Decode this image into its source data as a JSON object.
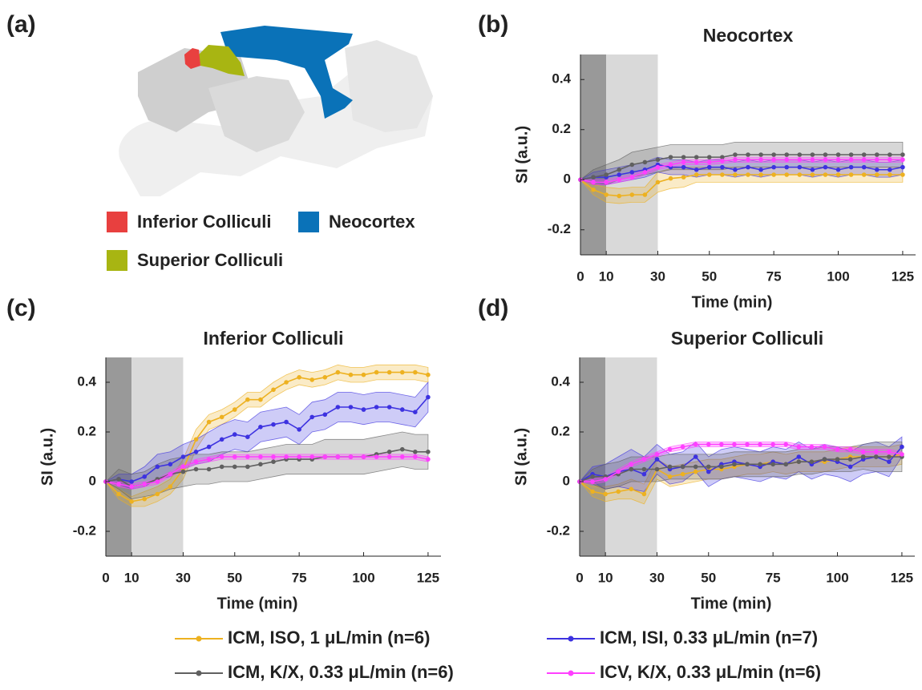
{
  "brain_diagram": {
    "panel_label": "(a)",
    "legend": [
      {
        "name": "Inferior Colliculi",
        "color": "#e8403f"
      },
      {
        "name": "Neocortex",
        "color": "#0a72b8"
      },
      {
        "name": "Superior Colliculi",
        "color": "#a8b512"
      }
    ]
  },
  "chart_data": [
    {
      "type": "line",
      "panel_label": "(b)",
      "title": "Neocortex",
      "xlabel": "Time (min)",
      "ylabel": "SI (a.u.)",
      "x": [
        0,
        5,
        10,
        15,
        20,
        25,
        30,
        35,
        40,
        45,
        50,
        55,
        60,
        65,
        70,
        75,
        80,
        85,
        90,
        95,
        100,
        105,
        110,
        115,
        120,
        125
      ],
      "xlim": [
        0,
        130
      ],
      "xticks": [
        0,
        10,
        30,
        50,
        75,
        100,
        125
      ],
      "ylim": [
        -0.3,
        0.5
      ],
      "yticks": [
        -0.2,
        0,
        0.2,
        0.4
      ],
      "shaded_spans": [
        {
          "xlim": [
            0,
            10
          ],
          "color": "#999999"
        },
        {
          "xlim": [
            10,
            30
          ],
          "color": "#d9d9d9"
        }
      ],
      "series": [
        {
          "name": "ICM, ISO, 1 μL/min (n=6)",
          "color": "#edb120",
          "values": [
            0,
            -0.04,
            -0.06,
            -0.065,
            -0.06,
            -0.06,
            -0.01,
            0.005,
            0.01,
            0.02,
            0.02,
            0.02,
            0.02,
            0.02,
            0.02,
            0.02,
            0.02,
            0.02,
            0.02,
            0.02,
            0.02,
            0.02,
            0.02,
            0.02,
            0.02,
            0.02
          ],
          "error": [
            0,
            0.02,
            0.03,
            0.03,
            0.03,
            0.03,
            0.04,
            0.04,
            0.04,
            0.03,
            0.03,
            0.03,
            0.03,
            0.03,
            0.03,
            0.03,
            0.03,
            0.03,
            0.03,
            0.03,
            0.03,
            0.03,
            0.03,
            0.03,
            0.03,
            0.03
          ]
        },
        {
          "name": "ICM, ISI, 0.33 μL/min (n=7)",
          "color": "#3d32e0",
          "values": [
            0,
            0.01,
            0.01,
            0.02,
            0.03,
            0.04,
            0.06,
            0.05,
            0.05,
            0.04,
            0.05,
            0.05,
            0.04,
            0.05,
            0.04,
            0.05,
            0.05,
            0.05,
            0.04,
            0.05,
            0.04,
            0.05,
            0.05,
            0.04,
            0.04,
            0.05
          ],
          "error": [
            0,
            0.02,
            0.03,
            0.03,
            0.03,
            0.03,
            0.03,
            0.03,
            0.03,
            0.03,
            0.03,
            0.03,
            0.03,
            0.03,
            0.03,
            0.03,
            0.03,
            0.03,
            0.03,
            0.03,
            0.03,
            0.03,
            0.03,
            0.03,
            0.03,
            0.03
          ]
        },
        {
          "name": "ICM, K/X, 0.33 μL/min (n=6)",
          "color": "#606060",
          "values": [
            0,
            0.01,
            0.02,
            0.04,
            0.06,
            0.07,
            0.08,
            0.09,
            0.09,
            0.09,
            0.09,
            0.09,
            0.1,
            0.1,
            0.1,
            0.1,
            0.1,
            0.1,
            0.1,
            0.1,
            0.1,
            0.1,
            0.1,
            0.1,
            0.1,
            0.1
          ],
          "error": [
            0,
            0.03,
            0.04,
            0.04,
            0.05,
            0.05,
            0.05,
            0.05,
            0.05,
            0.05,
            0.05,
            0.05,
            0.05,
            0.05,
            0.05,
            0.05,
            0.05,
            0.05,
            0.05,
            0.05,
            0.05,
            0.05,
            0.05,
            0.05,
            0.05,
            0.05
          ]
        },
        {
          "name": "ICV, K/X, 0.33 μL/min (n=6)",
          "color": "#ff40ff",
          "values": [
            0,
            -0.01,
            -0.01,
            0,
            0.01,
            0.03,
            0.05,
            0.06,
            0.07,
            0.07,
            0.07,
            0.075,
            0.08,
            0.08,
            0.08,
            0.08,
            0.08,
            0.08,
            0.08,
            0.08,
            0.08,
            0.08,
            0.08,
            0.08,
            0.08,
            0.08
          ],
          "error": [
            0,
            0.01,
            0.01,
            0.01,
            0.01,
            0.01,
            0.01,
            0.01,
            0.01,
            0.01,
            0.01,
            0.01,
            0.01,
            0.01,
            0.01,
            0.01,
            0.01,
            0.01,
            0.01,
            0.01,
            0.01,
            0.01,
            0.01,
            0.01,
            0.01,
            0.01
          ]
        }
      ]
    },
    {
      "type": "line",
      "panel_label": "(c)",
      "title": "Inferior Colliculi",
      "xlabel": "Time (min)",
      "ylabel": "SI (a.u.)",
      "x": [
        0,
        5,
        10,
        15,
        20,
        25,
        30,
        35,
        40,
        45,
        50,
        55,
        60,
        65,
        70,
        75,
        80,
        85,
        90,
        95,
        100,
        105,
        110,
        115,
        120,
        125
      ],
      "xlim": [
        0,
        130
      ],
      "xticks": [
        0,
        10,
        30,
        50,
        75,
        100,
        125
      ],
      "ylim": [
        -0.3,
        0.5
      ],
      "yticks": [
        -0.2,
        0,
        0.2,
        0.4
      ],
      "shaded_spans": [
        {
          "xlim": [
            0,
            10
          ],
          "color": "#999999"
        },
        {
          "xlim": [
            10,
            30
          ],
          "color": "#d9d9d9"
        }
      ],
      "series": [
        {
          "name": "ICM, ISO, 1 μL/min (n=6)",
          "color": "#edb120",
          "values": [
            0,
            -0.05,
            -0.08,
            -0.07,
            -0.05,
            -0.02,
            0.05,
            0.17,
            0.24,
            0.26,
            0.29,
            0.33,
            0.33,
            0.37,
            0.4,
            0.42,
            0.41,
            0.42,
            0.44,
            0.43,
            0.43,
            0.44,
            0.44,
            0.44,
            0.44,
            0.43
          ],
          "error": [
            0,
            0.02,
            0.02,
            0.03,
            0.03,
            0.03,
            0.04,
            0.04,
            0.03,
            0.03,
            0.03,
            0.03,
            0.03,
            0.03,
            0.03,
            0.03,
            0.03,
            0.03,
            0.03,
            0.03,
            0.03,
            0.03,
            0.03,
            0.03,
            0.03,
            0.03
          ]
        },
        {
          "name": "ICM, ISI, 0.33 μL/min (n=7)",
          "color": "#3d32e0",
          "values": [
            0,
            0.01,
            0,
            0.02,
            0.06,
            0.07,
            0.1,
            0.12,
            0.14,
            0.17,
            0.19,
            0.18,
            0.22,
            0.23,
            0.24,
            0.21,
            0.26,
            0.27,
            0.3,
            0.3,
            0.29,
            0.3,
            0.3,
            0.29,
            0.28,
            0.34
          ],
          "error": [
            0,
            0.02,
            0.03,
            0.04,
            0.05,
            0.05,
            0.05,
            0.05,
            0.06,
            0.06,
            0.06,
            0.06,
            0.06,
            0.06,
            0.06,
            0.06,
            0.06,
            0.06,
            0.06,
            0.06,
            0.06,
            0.06,
            0.06,
            0.06,
            0.06,
            0.06
          ]
        },
        {
          "name": "ICM, K/X, 0.33 μL/min (n=6)",
          "color": "#606060",
          "values": [
            0,
            0.01,
            -0.02,
            -0.01,
            0.01,
            0.03,
            0.04,
            0.05,
            0.05,
            0.06,
            0.06,
            0.06,
            0.07,
            0.08,
            0.09,
            0.09,
            0.09,
            0.1,
            0.1,
            0.1,
            0.1,
            0.11,
            0.12,
            0.13,
            0.12,
            0.12
          ],
          "error": [
            0,
            0.04,
            0.05,
            0.05,
            0.06,
            0.06,
            0.06,
            0.06,
            0.06,
            0.06,
            0.06,
            0.06,
            0.06,
            0.06,
            0.06,
            0.06,
            0.06,
            0.07,
            0.07,
            0.07,
            0.07,
            0.07,
            0.07,
            0.07,
            0.07,
            0.07
          ]
        },
        {
          "name": "ICV, K/X, 0.33 μL/min (n=6)",
          "color": "#ff40ff",
          "values": [
            0,
            -0.01,
            -0.02,
            -0.01,
            0,
            0.03,
            0.06,
            0.08,
            0.09,
            0.1,
            0.1,
            0.1,
            0.1,
            0.1,
            0.1,
            0.1,
            0.1,
            0.1,
            0.1,
            0.1,
            0.1,
            0.1,
            0.1,
            0.1,
            0.1,
            0.09
          ],
          "error": [
            0,
            0.01,
            0.01,
            0.01,
            0.01,
            0.01,
            0.01,
            0.01,
            0.01,
            0.01,
            0.01,
            0.01,
            0.01,
            0.01,
            0.01,
            0.01,
            0.01,
            0.01,
            0.01,
            0.01,
            0.01,
            0.01,
            0.01,
            0.01,
            0.01,
            0.01
          ]
        }
      ]
    },
    {
      "type": "line",
      "panel_label": "(d)",
      "title": "Superior Colliculi",
      "xlabel": "Time (min)",
      "ylabel": "SI (a.u.)",
      "x": [
        0,
        5,
        10,
        15,
        20,
        25,
        30,
        35,
        40,
        45,
        50,
        55,
        60,
        65,
        70,
        75,
        80,
        85,
        90,
        95,
        100,
        105,
        110,
        115,
        120,
        125
      ],
      "xlim": [
        0,
        130
      ],
      "xticks": [
        0,
        10,
        30,
        50,
        75,
        100,
        125
      ],
      "ylim": [
        -0.3,
        0.5
      ],
      "yticks": [
        -0.2,
        0,
        0.2,
        0.4
      ],
      "shaded_spans": [
        {
          "xlim": [
            0,
            10
          ],
          "color": "#999999"
        },
        {
          "xlim": [
            10,
            30
          ],
          "color": "#d9d9d9"
        }
      ],
      "series": [
        {
          "name": "ICM, ISO, 1 μL/min (n=6)",
          "color": "#edb120",
          "values": [
            0,
            -0.04,
            -0.05,
            -0.04,
            -0.03,
            -0.05,
            0.05,
            0.02,
            0.03,
            0.04,
            0.05,
            0.05,
            0.06,
            0.07,
            0.07,
            0.08,
            0.07,
            0.08,
            0.08,
            0.08,
            0.09,
            0.1,
            0.1,
            0.1,
            0.1,
            0.11
          ],
          "error": [
            0,
            0.02,
            0.03,
            0.03,
            0.04,
            0.04,
            0.04,
            0.04,
            0.04,
            0.04,
            0.04,
            0.04,
            0.04,
            0.04,
            0.04,
            0.04,
            0.04,
            0.04,
            0.04,
            0.04,
            0.04,
            0.04,
            0.04,
            0.04,
            0.04,
            0.04
          ]
        },
        {
          "name": "ICM, ISI, 0.33 μL/min (n=7)",
          "color": "#3d32e0",
          "values": [
            0,
            0.03,
            0.02,
            0.04,
            0.05,
            0.03,
            0.09,
            0.05,
            0.06,
            0.1,
            0.04,
            0.07,
            0.08,
            0.07,
            0.06,
            0.08,
            0.07,
            0.1,
            0.07,
            0.09,
            0.08,
            0.06,
            0.09,
            0.1,
            0.08,
            0.14
          ],
          "error": [
            0,
            0.03,
            0.05,
            0.06,
            0.08,
            0.07,
            0.06,
            0.06,
            0.06,
            0.06,
            0.06,
            0.06,
            0.06,
            0.06,
            0.06,
            0.06,
            0.06,
            0.06,
            0.06,
            0.06,
            0.06,
            0.06,
            0.06,
            0.06,
            0.06,
            0.04
          ]
        },
        {
          "name": "ICM, K/X, 0.33 μL/min (n=6)",
          "color": "#606060",
          "values": [
            0,
            0.02,
            0.02,
            0.03,
            0.05,
            0.05,
            0.05,
            0.06,
            0.06,
            0.06,
            0.06,
            0.06,
            0.07,
            0.07,
            0.07,
            0.07,
            0.07,
            0.08,
            0.08,
            0.09,
            0.09,
            0.09,
            0.1,
            0.1,
            0.1,
            0.1
          ],
          "error": [
            0,
            0.03,
            0.05,
            0.05,
            0.05,
            0.05,
            0.05,
            0.05,
            0.05,
            0.05,
            0.05,
            0.05,
            0.05,
            0.05,
            0.05,
            0.05,
            0.05,
            0.05,
            0.05,
            0.05,
            0.05,
            0.05,
            0.05,
            0.06,
            0.06,
            0.06
          ]
        },
        {
          "name": "ICV, K/X, 0.33 μL/min (n=6)",
          "color": "#ff40ff",
          "values": [
            0,
            0,
            0.01,
            0.04,
            0.07,
            0.09,
            0.11,
            0.13,
            0.14,
            0.15,
            0.15,
            0.15,
            0.15,
            0.15,
            0.15,
            0.15,
            0.15,
            0.14,
            0.14,
            0.14,
            0.13,
            0.13,
            0.12,
            0.12,
            0.12,
            0.11
          ],
          "error": [
            0,
            0.01,
            0.01,
            0.01,
            0.01,
            0.01,
            0.01,
            0.01,
            0.01,
            0.01,
            0.01,
            0.01,
            0.01,
            0.01,
            0.01,
            0.01,
            0.01,
            0.01,
            0.01,
            0.01,
            0.01,
            0.01,
            0.01,
            0.01,
            0.01,
            0.01
          ]
        }
      ]
    }
  ]
}
